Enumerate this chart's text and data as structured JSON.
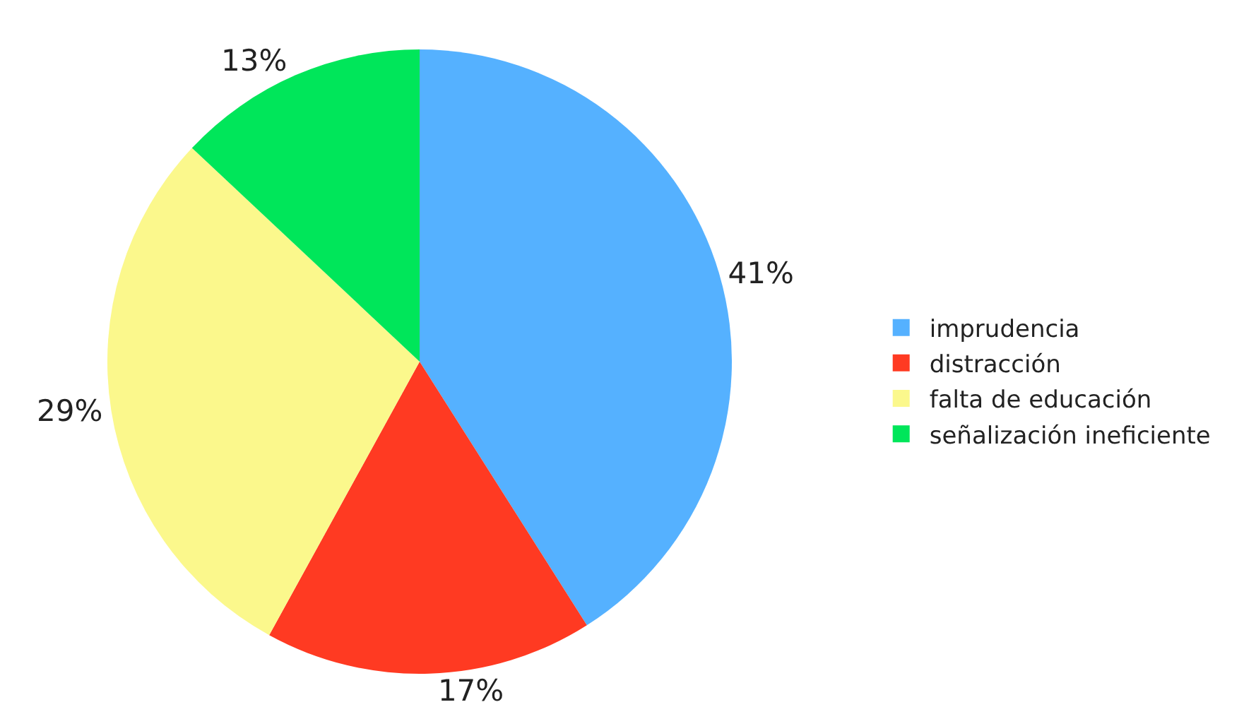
{
  "chart_data": {
    "type": "pie",
    "categories": [
      "imprudencia",
      "distracción",
      "falta de educación",
      "señalización ineficiente"
    ],
    "values": [
      41,
      17,
      29,
      13
    ],
    "value_labels": [
      "41%",
      "17%",
      "29%",
      "13%"
    ],
    "colors": [
      "#55b1ff",
      "#ff3a22",
      "#fbf88c",
      "#00e65a"
    ],
    "legend": "right"
  }
}
